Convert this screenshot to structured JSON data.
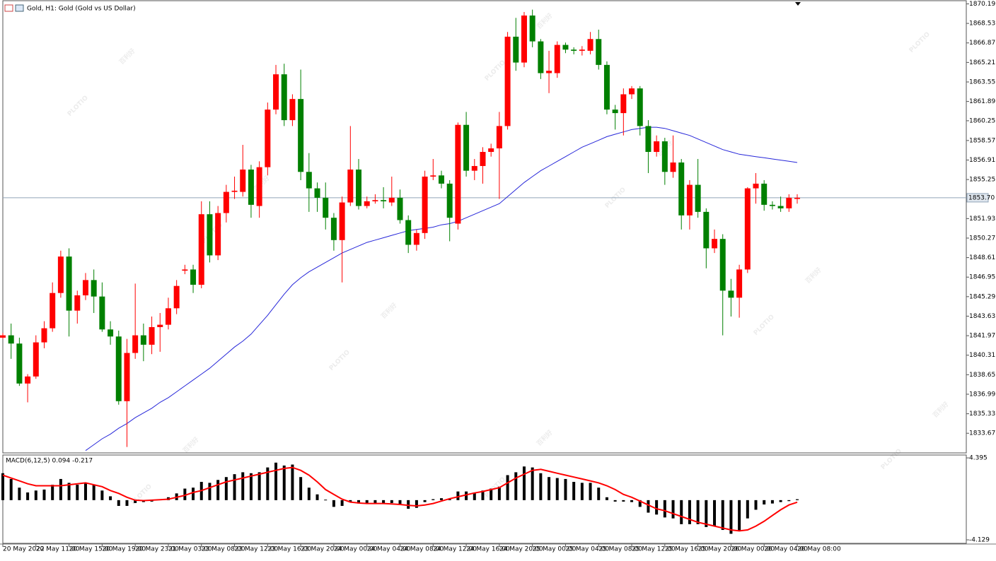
{
  "watermark": {
    "logo": "PLOTIO",
    "text": "百利好"
  },
  "chart_data": [
    {
      "type": "candlestick",
      "title": "Gold, H1:  Gold (Gold vs US Dollar)",
      "categories": [
        "20 May 2022",
        null,
        null,
        null,
        "20 May 11:00",
        null,
        null,
        null,
        "20 May 15:00",
        null,
        null,
        null,
        "20 May 19:00",
        null,
        null,
        null,
        "20 May 23:00",
        null,
        null,
        null,
        "21 May 03:00",
        null,
        null,
        null,
        "23 May 08:00",
        null,
        null,
        null,
        "23 May 12:00",
        null,
        null,
        null,
        "23 May 16:00",
        null,
        null,
        null,
        "23 May 20:00",
        null,
        null,
        null,
        "24 May 00:00",
        null,
        null,
        null,
        "24 May 04:00",
        null,
        null,
        null,
        "24 May 08:00",
        null,
        null,
        null,
        "24 May 12:00",
        null,
        null,
        null,
        "24 May 16:00",
        null,
        null,
        null,
        "24 May 20:00",
        null,
        null,
        null,
        "25 May 00:00",
        null,
        null,
        null,
        "25 May 04:00",
        null,
        null,
        null,
        "25 May 08:00",
        null,
        null,
        null,
        "25 May 12:00",
        null,
        null,
        null,
        "25 May 16:00",
        null,
        null,
        null,
        "25 May 20:00",
        null,
        null,
        null,
        "26 May 00:00",
        null,
        null,
        null,
        "26 May 04:00",
        null,
        null,
        null,
        "26 May 08:00"
      ],
      "open": [
        1841.8,
        1842.0,
        1841.3,
        1837.9,
        1838.5,
        1841.4,
        1842.6,
        1845.6,
        1848.7,
        1844.1,
        1845.4,
        1846.7,
        1845.3,
        1842.5,
        1841.9,
        1836.4,
        1840.5,
        1842.0,
        1841.2,
        1842.7,
        1842.9,
        1844.3,
        1847.5,
        1847.6,
        1846.3,
        1852.3,
        1848.8,
        1852.4,
        1854.2,
        1854.2,
        1856.1,
        1853.0,
        1856.3,
        1861.2,
        1864.2,
        1860.3,
        1862.1,
        1855.9,
        1854.5,
        1853.7,
        1852.0,
        1850.1,
        1853.3,
        1856.1,
        1853.0,
        1853.4,
        1853.5,
        1853.3,
        1853.7,
        1851.8,
        1849.7,
        1850.7,
        1855.5,
        1855.6,
        1854.9,
        1851.5,
        1859.9,
        1856.0,
        1856.4,
        1857.6,
        1857.9,
        1859.8,
        1867.4,
        1865.2,
        1869.2,
        1867.0,
        1864.3,
        1864.3,
        1866.7,
        1866.3,
        1866.2,
        1866.2,
        1867.2,
        1865.0,
        1861.2,
        1860.9,
        1862.5,
        1863.0,
        1859.8,
        1857.6,
        1858.5,
        1855.9,
        1856.7,
        1852.2,
        1854.8,
        1852.5,
        1849.4,
        1850.2,
        1845.8,
        1845.2,
        1847.6,
        1854.5,
        1854.9,
        1853.1,
        1853.0,
        1852.8,
        1853.6
      ],
      "high": [
        1842.2,
        1843.0,
        1841.8,
        1838.7,
        1842.0,
        1843.2,
        1846.5,
        1849.2,
        1849.4,
        1845.8,
        1847.3,
        1847.6,
        1846.5,
        1843.2,
        1842.4,
        1841.7,
        1846.4,
        1843.0,
        1843.6,
        1843.9,
        1845.2,
        1846.7,
        1848.0,
        1848.0,
        1853.4,
        1853.4,
        1853.0,
        1854.8,
        1855.5,
        1858.2,
        1856.5,
        1856.8,
        1861.8,
        1865.0,
        1865.1,
        1862.5,
        1864.6,
        1857.5,
        1855.0,
        1855.0,
        1852.4,
        1853.8,
        1859.8,
        1857.0,
        1853.8,
        1854.0,
        1854.6,
        1855.5,
        1854.4,
        1852.2,
        1851.0,
        1856.0,
        1857.0,
        1856.0,
        1855.2,
        1860.1,
        1861.0,
        1857.0,
        1858.0,
        1858.3,
        1861.0,
        1867.8,
        1869.0,
        1869.5,
        1869.7,
        1867.2,
        1866.2,
        1867.0,
        1866.9,
        1866.5,
        1866.6,
        1867.8,
        1868.0,
        1865.3,
        1861.6,
        1863.0,
        1863.2,
        1863.2,
        1860.3,
        1859.0,
        1858.8,
        1859.0,
        1857.0,
        1855.2,
        1857.0,
        1852.8,
        1851.0,
        1850.6,
        1846.8,
        1848.0,
        1854.6,
        1855.8,
        1855.2,
        1853.4,
        1853.8,
        1854.0,
        1854.0
      ],
      "low": [
        1841.7,
        1840.0,
        1837.7,
        1836.3,
        1838.3,
        1840.9,
        1842.3,
        1845.2,
        1841.9,
        1843.0,
        1845.0,
        1843.9,
        1842.3,
        1841.2,
        1836.1,
        1832.5,
        1840.0,
        1839.8,
        1840.4,
        1840.6,
        1842.5,
        1843.8,
        1847.2,
        1845.6,
        1846.0,
        1848.2,
        1848.4,
        1851.6,
        1853.6,
        1853.8,
        1852.0,
        1852.0,
        1855.6,
        1860.8,
        1859.8,
        1859.8,
        1855.2,
        1852.5,
        1852.5,
        1851.0,
        1849.2,
        1846.5,
        1853.0,
        1852.7,
        1852.8,
        1853.2,
        1852.8,
        1853.0,
        1851.5,
        1849.0,
        1849.2,
        1850.2,
        1855.2,
        1854.5,
        1850.0,
        1851.0,
        1855.5,
        1855.2,
        1854.9,
        1857.2,
        1853.6,
        1859.5,
        1864.5,
        1864.8,
        1866.5,
        1863.8,
        1862.6,
        1863.9,
        1866.0,
        1865.9,
        1865.8,
        1865.9,
        1864.6,
        1860.8,
        1859.5,
        1859.0,
        1862.1,
        1859.0,
        1855.8,
        1857.2,
        1854.8,
        1855.4,
        1851.0,
        1851.0,
        1852.0,
        1847.7,
        1849.0,
        1842.0,
        1843.6,
        1843.5,
        1847.3,
        1853.2,
        1852.6,
        1852.7,
        1852.5,
        1852.5,
        1853.2
      ],
      "close": [
        1842.0,
        1841.3,
        1837.9,
        1838.5,
        1841.4,
        1842.6,
        1845.6,
        1848.7,
        1844.1,
        1845.4,
        1846.7,
        1845.3,
        1842.5,
        1841.9,
        1836.4,
        1840.5,
        1842.0,
        1841.2,
        1842.7,
        1842.9,
        1844.3,
        1846.2,
        1847.6,
        1846.3,
        1852.3,
        1848.8,
        1852.4,
        1854.2,
        1854.3,
        1856.1,
        1853.1,
        1856.3,
        1861.2,
        1864.2,
        1860.3,
        1862.1,
        1855.9,
        1854.5,
        1853.7,
        1852.0,
        1850.1,
        1853.3,
        1856.1,
        1853.0,
        1853.4,
        1853.5,
        1853.4,
        1853.7,
        1851.8,
        1849.7,
        1850.7,
        1855.5,
        1855.6,
        1854.9,
        1852.0,
        1859.9,
        1856.0,
        1856.4,
        1857.6,
        1857.9,
        1859.8,
        1867.4,
        1865.2,
        1869.2,
        1867.0,
        1864.3,
        1864.5,
        1866.7,
        1866.3,
        1866.2,
        1866.3,
        1867.2,
        1865.0,
        1861.2,
        1860.9,
        1862.5,
        1863.0,
        1859.8,
        1857.6,
        1858.5,
        1855.9,
        1856.7,
        1852.2,
        1854.8,
        1852.5,
        1849.4,
        1850.2,
        1845.8,
        1845.2,
        1847.6,
        1854.5,
        1854.9,
        1853.1,
        1853.0,
        1852.8,
        1853.7,
        1853.7
      ],
      "up_color": "#ff0000",
      "down_color": "#008000",
      "ma": {
        "color": "#2626d9",
        "values": [
          null,
          null,
          null,
          null,
          null,
          null,
          null,
          null,
          null,
          null,
          1832.2,
          1832.7,
          1833.2,
          1833.6,
          1834.1,
          1834.5,
          1835.0,
          1835.4,
          1835.8,
          1836.3,
          1836.7,
          1837.2,
          1837.7,
          1838.2,
          1838.7,
          1839.2,
          1839.8,
          1840.4,
          1841.0,
          1841.5,
          1842.1,
          1842.9,
          1843.7,
          1844.6,
          1845.5,
          1846.3,
          1846.9,
          1847.4,
          1847.8,
          1848.2,
          1848.6,
          1849.0,
          1849.3,
          1849.6,
          1849.9,
          1850.1,
          1850.3,
          1850.5,
          1850.7,
          1850.9,
          1851.0,
          1851.1,
          1851.2,
          1851.4,
          1851.5,
          1851.7,
          1852.0,
          1852.3,
          1852.6,
          1852.9,
          1853.2,
          1853.8,
          1854.4,
          1855.0,
          1855.5,
          1856.0,
          1856.4,
          1856.8,
          1857.2,
          1857.6,
          1858.0,
          1858.3,
          1858.6,
          1858.9,
          1859.1,
          1859.3,
          1859.5,
          1859.6,
          1859.7,
          1859.7,
          1859.6,
          1859.4,
          1859.2,
          1859.0,
          1858.7,
          1858.4,
          1858.1,
          1857.8,
          1857.6,
          1857.4,
          1857.3,
          1857.2,
          1857.1,
          1857.0,
          1856.9,
          1856.8,
          1856.7
        ]
      },
      "price": {
        "value": 1853.7,
        "label": "1853.70"
      },
      "price_color": "#90a4b8",
      "ylim": [
        1832.0,
        1870.4
      ],
      "yticks": [
        1870.19,
        1868.53,
        1866.87,
        1865.21,
        1863.55,
        1861.89,
        1860.25,
        1858.57,
        1856.91,
        1855.25,
        1851.93,
        1850.27,
        1848.61,
        1846.95,
        1845.29,
        1843.63,
        1841.97,
        1840.31,
        1838.65,
        1836.99,
        1835.33,
        1833.67
      ]
    },
    {
      "type": "macd",
      "title": "MACD(6,12,5) 0.094 -0.217",
      "histogram": {
        "color": "#000000",
        "values": [
          2.8,
          2.2,
          1.3,
          0.8,
          1.0,
          1.1,
          1.6,
          2.2,
          1.8,
          1.6,
          1.8,
          1.6,
          1.0,
          0.4,
          -0.6,
          -0.6,
          -0.3,
          -0.2,
          -0.15,
          0.1,
          0.3,
          0.7,
          1.2,
          1.3,
          1.9,
          1.8,
          2.1,
          2.4,
          2.7,
          2.9,
          2.8,
          2.9,
          3.4,
          3.9,
          3.6,
          3.7,
          2.4,
          1.3,
          0.6,
          0.05,
          -0.7,
          -0.6,
          -0.15,
          -0.35,
          -0.4,
          -0.35,
          -0.35,
          -0.3,
          -0.4,
          -0.9,
          -0.8,
          -0.2,
          0.1,
          0.2,
          0.1,
          0.9,
          0.9,
          0.8,
          1.0,
          1.2,
          1.4,
          2.6,
          2.9,
          3.5,
          3.4,
          2.8,
          2.4,
          2.3,
          2.2,
          1.9,
          1.8,
          1.8,
          1.3,
          0.3,
          -0.15,
          -0.15,
          -0.2,
          -0.7,
          -1.3,
          -1.5,
          -1.8,
          -1.9,
          -2.5,
          -2.5,
          -2.5,
          -2.8,
          -2.7,
          -3.1,
          -3.5,
          -3.2,
          -1.9,
          -1.0,
          -0.45,
          -0.35,
          -0.2,
          -0.1,
          0.094
        ]
      },
      "signal": {
        "color": "#ff0000",
        "values": [
          2.6,
          2.3,
          2.0,
          1.7,
          1.5,
          1.5,
          1.5,
          1.5,
          1.6,
          1.7,
          1.8,
          1.6,
          1.4,
          1.0,
          0.7,
          0.3,
          0.0,
          -0.05,
          0.0,
          0.05,
          0.1,
          0.3,
          0.5,
          0.8,
          1.0,
          1.3,
          1.6,
          1.9,
          2.1,
          2.3,
          2.5,
          2.7,
          2.9,
          3.1,
          3.3,
          3.4,
          3.1,
          2.6,
          1.9,
          1.1,
          0.6,
          0.1,
          -0.2,
          -0.3,
          -0.35,
          -0.35,
          -0.35,
          -0.4,
          -0.45,
          -0.55,
          -0.6,
          -0.5,
          -0.35,
          -0.1,
          0.15,
          0.35,
          0.55,
          0.75,
          0.9,
          1.1,
          1.3,
          1.8,
          2.3,
          2.7,
          3.1,
          3.2,
          3.0,
          2.8,
          2.6,
          2.4,
          2.2,
          2.0,
          1.8,
          1.5,
          1.1,
          0.6,
          0.3,
          -0.1,
          -0.5,
          -0.9,
          -1.1,
          -1.4,
          -1.7,
          -2.0,
          -2.3,
          -2.5,
          -2.7,
          -2.9,
          -3.1,
          -3.2,
          -3.1,
          -2.7,
          -2.2,
          -1.6,
          -1.0,
          -0.5,
          -0.217
        ]
      },
      "ylim": [
        -4.42,
        4.62
      ],
      "yticks": [
        4.395,
        -4.129
      ]
    }
  ]
}
